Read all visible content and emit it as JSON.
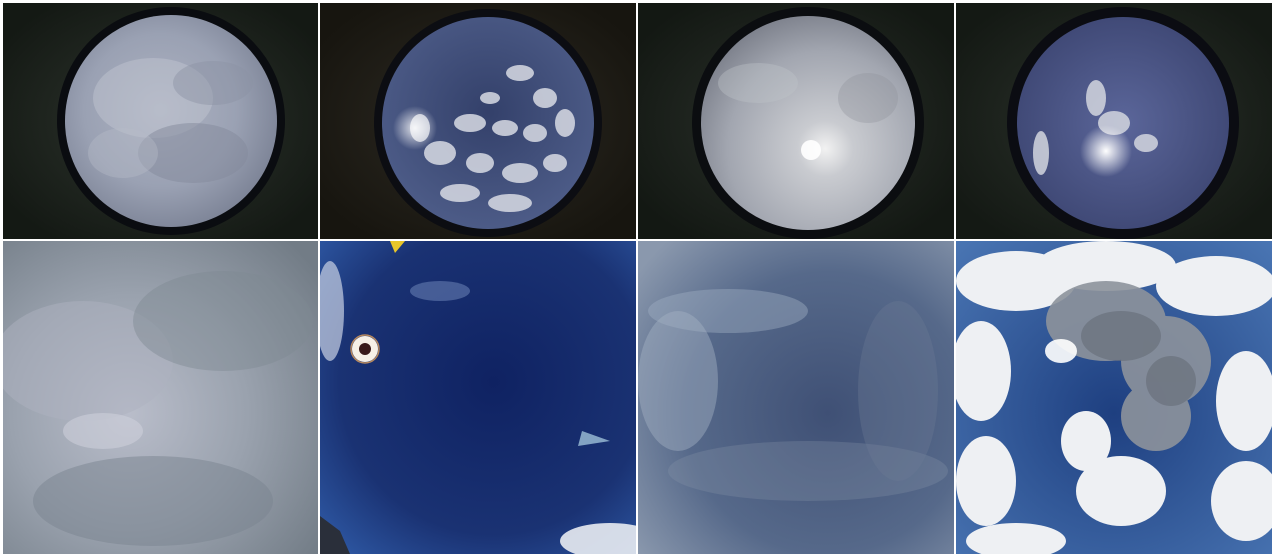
{
  "figure": {
    "rows": 2,
    "columns": 4,
    "panels": [
      {
        "row": 1,
        "col": 1,
        "type": "fisheye-dome",
        "sky": "overcast",
        "colors": {
          "sky": "#9ca3b4",
          "housing": "#1c211c"
        }
      },
      {
        "row": 1,
        "col": 2,
        "type": "fisheye-dome",
        "sky": "broken-clouds",
        "colors": {
          "sky": "#3a4a74",
          "housing": "#22201a"
        }
      },
      {
        "row": 1,
        "col": 3,
        "type": "fisheye-dome",
        "sky": "thin-overcast-sun",
        "colors": {
          "sky": "#a9adb5",
          "housing": "#1a1f1a"
        }
      },
      {
        "row": 1,
        "col": 4,
        "type": "fisheye-dome",
        "sky": "partly-cloudy-sun",
        "colors": {
          "sky": "#4e5a86",
          "housing": "#1d221d"
        }
      },
      {
        "row": 2,
        "col": 1,
        "type": "wide-angle",
        "sky": "overcast",
        "colors": {
          "sky": "#9099a6"
        }
      },
      {
        "row": 2,
        "col": 2,
        "type": "wide-angle",
        "sky": "clear-with-sun",
        "colors": {
          "sky": "#152a6c"
        }
      },
      {
        "row": 2,
        "col": 3,
        "type": "wide-angle",
        "sky": "thin-cirrus",
        "colors": {
          "sky": "#56698a"
        }
      },
      {
        "row": 2,
        "col": 4,
        "type": "wide-angle",
        "sky": "cumulus",
        "colors": {
          "sky": "#2e4f8e"
        }
      }
    ]
  }
}
